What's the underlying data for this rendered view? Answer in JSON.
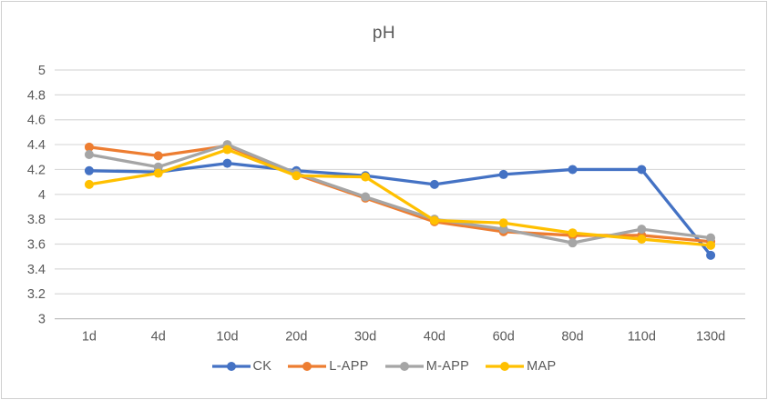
{
  "chart_data": {
    "type": "line",
    "title": "pH",
    "categories": [
      "1d",
      "4d",
      "10d",
      "20d",
      "30d",
      "40d",
      "60d",
      "80d",
      "110d",
      "130d"
    ],
    "series": [
      {
        "name": "CK",
        "color": "#4472C4",
        "values": [
          4.19,
          4.18,
          4.25,
          4.19,
          4.15,
          4.08,
          4.16,
          4.2,
          4.2,
          3.51
        ]
      },
      {
        "name": "L-APP",
        "color": "#ED7D31",
        "values": [
          4.38,
          4.31,
          4.39,
          4.16,
          3.97,
          3.78,
          3.7,
          3.67,
          3.67,
          3.62
        ]
      },
      {
        "name": "M-APP",
        "color": "#A5A5A5",
        "values": [
          4.32,
          4.22,
          4.4,
          4.17,
          3.98,
          3.8,
          3.72,
          3.61,
          3.72,
          3.65
        ]
      },
      {
        "name": "MAP",
        "color": "#FFC000",
        "values": [
          4.08,
          4.17,
          4.36,
          4.15,
          4.14,
          3.79,
          3.77,
          3.69,
          3.64,
          3.59
        ]
      }
    ],
    "xlabel": "",
    "ylabel": "",
    "ylim": [
      3,
      5
    ],
    "ytick_step": 0.2,
    "ytick_labels": [
      "5",
      "4.8",
      "4.6",
      "4.4",
      "4.2",
      "4",
      "3.8",
      "3.6",
      "3.4",
      "3.2",
      "3"
    ],
    "grid": true,
    "legend_position": "bottom",
    "marker": "circle",
    "colors": {
      "gridline": "#D9D9D9",
      "axis_line": "#BFBFBF",
      "text": "#595959",
      "border": "#CFCFCF",
      "background": "#FFFFFF"
    }
  }
}
